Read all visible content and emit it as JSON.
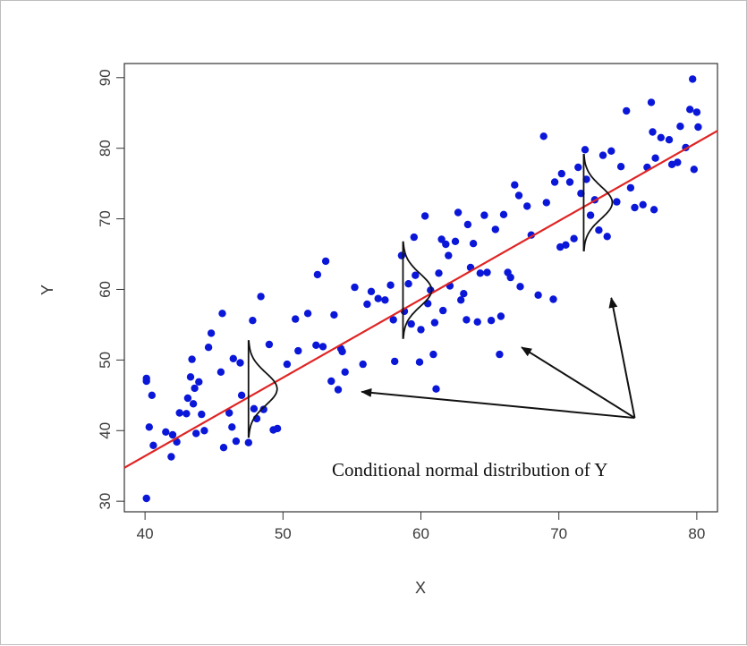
{
  "chart_data": {
    "type": "scatter",
    "title": "",
    "xlabel": "X",
    "ylabel": "Y",
    "xlim": [
      38.5,
      81.5
    ],
    "ylim": [
      28.5,
      92
    ],
    "xticks": [
      40,
      50,
      60,
      70,
      80
    ],
    "yticks": [
      30,
      40,
      50,
      60,
      70,
      80,
      90
    ],
    "grid": false,
    "colors": {
      "points": "#0a17d9",
      "regression_line": "#e02424",
      "curves": "#111111",
      "arrows": "#111111"
    },
    "points": [
      [
        40.1,
        30.4
      ],
      [
        40.1,
        47.4
      ],
      [
        40.1,
        47.0
      ],
      [
        40.3,
        40.5
      ],
      [
        40.5,
        45.0
      ],
      [
        40.6,
        37.9
      ],
      [
        41.5,
        39.8
      ],
      [
        41.9,
        36.3
      ],
      [
        42.0,
        39.4
      ],
      [
        42.3,
        38.4
      ],
      [
        42.5,
        42.5
      ],
      [
        43.0,
        42.4
      ],
      [
        43.1,
        44.6
      ],
      [
        43.3,
        47.6
      ],
      [
        43.5,
        43.8
      ],
      [
        43.4,
        50.1
      ],
      [
        43.6,
        46.0
      ],
      [
        43.7,
        39.6
      ],
      [
        43.9,
        46.9
      ],
      [
        44.1,
        42.3
      ],
      [
        44.3,
        40.0
      ],
      [
        44.6,
        51.8
      ],
      [
        44.8,
        53.8
      ],
      [
        45.5,
        48.3
      ],
      [
        45.6,
        56.6
      ],
      [
        45.7,
        37.6
      ],
      [
        46.1,
        42.5
      ],
      [
        46.3,
        40.5
      ],
      [
        46.4,
        50.2
      ],
      [
        46.9,
        49.6
      ],
      [
        47.0,
        45.0
      ],
      [
        47.5,
        38.3
      ],
      [
        47.8,
        55.6
      ],
      [
        47.9,
        43.1
      ],
      [
        48.1,
        41.7
      ],
      [
        48.4,
        59.0
      ],
      [
        48.6,
        43.0
      ],
      [
        49.0,
        52.2
      ],
      [
        49.3,
        40.1
      ],
      [
        49.6,
        40.3
      ],
      [
        50.3,
        49.4
      ],
      [
        50.9,
        55.8
      ],
      [
        51.1,
        51.3
      ],
      [
        51.8,
        56.6
      ],
      [
        52.4,
        52.1
      ],
      [
        52.5,
        62.1
      ],
      [
        52.9,
        51.9
      ],
      [
        53.1,
        64.0
      ],
      [
        53.5,
        47.0
      ],
      [
        53.7,
        56.4
      ],
      [
        54.0,
        45.8
      ],
      [
        54.2,
        51.6
      ],
      [
        54.3,
        51.2
      ],
      [
        54.5,
        48.3
      ],
      [
        55.2,
        60.3
      ],
      [
        55.8,
        49.4
      ],
      [
        56.1,
        57.9
      ],
      [
        56.4,
        59.7
      ],
      [
        56.9,
        58.7
      ],
      [
        57.4,
        58.5
      ],
      [
        57.8,
        60.6
      ],
      [
        58.0,
        55.7
      ],
      [
        58.1,
        49.8
      ],
      [
        58.6,
        64.8
      ],
      [
        58.8,
        56.9
      ],
      [
        59.1,
        60.8
      ],
      [
        59.3,
        55.1
      ],
      [
        59.5,
        67.4
      ],
      [
        59.6,
        62.0
      ],
      [
        59.9,
        49.7
      ],
      [
        60.0,
        54.3
      ],
      [
        60.3,
        70.4
      ],
      [
        60.5,
        58.0
      ],
      [
        60.7,
        59.9
      ],
      [
        60.9,
        50.8
      ],
      [
        61.0,
        55.3
      ],
      [
        61.1,
        45.9
      ],
      [
        61.3,
        62.3
      ],
      [
        61.5,
        67.1
      ],
      [
        61.6,
        57.0
      ],
      [
        61.8,
        66.4
      ],
      [
        62.0,
        64.8
      ],
      [
        62.1,
        60.5
      ],
      [
        62.5,
        66.8
      ],
      [
        62.7,
        70.9
      ],
      [
        62.9,
        58.5
      ],
      [
        63.1,
        59.4
      ],
      [
        63.3,
        55.7
      ],
      [
        63.4,
        69.2
      ],
      [
        63.6,
        63.1
      ],
      [
        63.8,
        66.5
      ],
      [
        64.1,
        55.4
      ],
      [
        64.3,
        62.3
      ],
      [
        64.6,
        70.5
      ],
      [
        64.8,
        62.4
      ],
      [
        65.1,
        55.6
      ],
      [
        65.4,
        68.5
      ],
      [
        65.7,
        50.8
      ],
      [
        65.8,
        56.2
      ],
      [
        66.0,
        70.6
      ],
      [
        66.3,
        62.4
      ],
      [
        66.5,
        61.7
      ],
      [
        66.8,
        74.8
      ],
      [
        67.1,
        73.3
      ],
      [
        67.2,
        60.4
      ],
      [
        67.7,
        71.8
      ],
      [
        68.0,
        67.7
      ],
      [
        68.5,
        59.2
      ],
      [
        68.9,
        81.7
      ],
      [
        69.1,
        72.3
      ],
      [
        69.6,
        58.6
      ],
      [
        69.7,
        75.2
      ],
      [
        70.1,
        66.0
      ],
      [
        70.2,
        76.4
      ],
      [
        70.5,
        66.3
      ],
      [
        70.8,
        75.2
      ],
      [
        71.1,
        67.2
      ],
      [
        71.4,
        77.3
      ],
      [
        71.6,
        73.6
      ],
      [
        71.9,
        79.8
      ],
      [
        72.0,
        75.6
      ],
      [
        72.3,
        70.5
      ],
      [
        72.6,
        72.7
      ],
      [
        72.9,
        68.4
      ],
      [
        73.2,
        79.0
      ],
      [
        73.5,
        67.5
      ],
      [
        73.8,
        79.6
      ],
      [
        74.2,
        72.4
      ],
      [
        74.5,
        77.4
      ],
      [
        74.9,
        85.3
      ],
      [
        75.2,
        74.4
      ],
      [
        75.5,
        71.6
      ],
      [
        76.1,
        72.0
      ],
      [
        76.4,
        77.3
      ],
      [
        76.7,
        86.5
      ],
      [
        76.8,
        82.3
      ],
      [
        76.9,
        71.3
      ],
      [
        77.0,
        78.6
      ],
      [
        77.4,
        81.5
      ],
      [
        78.0,
        81.2
      ],
      [
        78.2,
        77.7
      ],
      [
        78.6,
        78.0
      ],
      [
        78.8,
        83.1
      ],
      [
        79.2,
        80.1
      ],
      [
        79.5,
        85.5
      ],
      [
        79.7,
        89.8
      ],
      [
        79.8,
        77.0
      ],
      [
        80.0,
        85.1
      ],
      [
        80.1,
        83.0
      ],
      [
        46.6,
        38.5
      ]
    ],
    "regression_line": {
      "intercept": -8.0,
      "slope": 1.11
    },
    "conditional_distributions": [
      {
        "x": 47.5,
        "y_mean": 45.9,
        "sd": 2.3
      },
      {
        "x": 58.7,
        "y_mean": 59.9,
        "sd": 2.3
      },
      {
        "x": 71.8,
        "y_mean": 72.3,
        "sd": 2.3
      }
    ],
    "annotation": {
      "text": "Conditional normal distribution of Y",
      "origin": [
        75.5,
        41.8
      ],
      "arrow_targets": [
        [
          55.7,
          45.5
        ],
        [
          67.3,
          51.8
        ],
        [
          73.8,
          58.8
        ]
      ]
    }
  }
}
